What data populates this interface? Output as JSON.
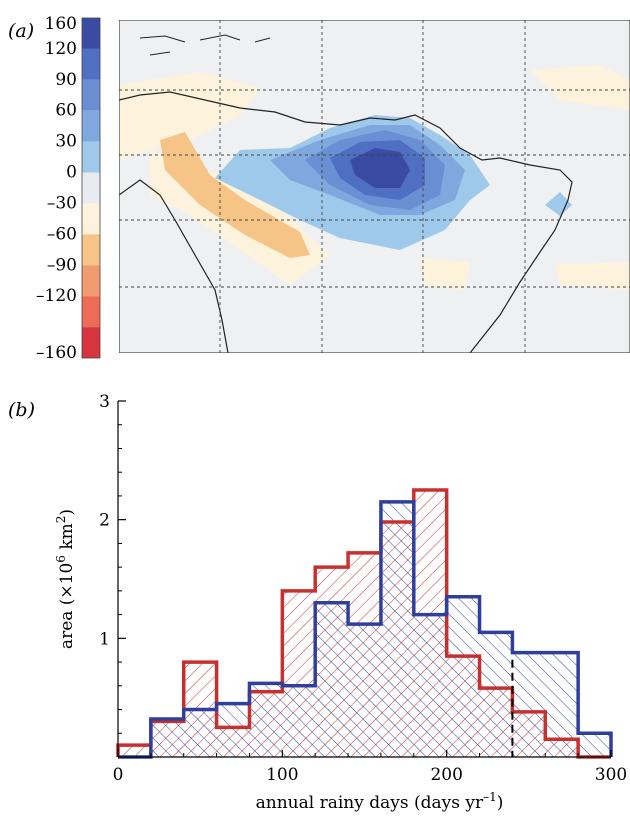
{
  "panel_a": {
    "label": "(a)",
    "colorbar": {
      "ticks": [
        "160",
        "120",
        "90",
        "60",
        "30",
        "0",
        "–30",
        "–60",
        "–90",
        "–120",
        "–160"
      ],
      "colors": [
        "#3b4aa3",
        "#4f6fc3",
        "#6a8fd2",
        "#7fa9de",
        "#9ec9ea",
        "#e8ecf0",
        "#fdf3dd",
        "#f7c488",
        "#f29a70",
        "#ee6b57",
        "#d8343f"
      ]
    }
  },
  "panel_b": {
    "label": "(b)",
    "series_colors": {
      "series_1": "#c8302f",
      "series_2": "#2f3f9c"
    }
  },
  "chart_data": {
    "type": "histogram",
    "xlabel": "annual rainy days (days yr",
    "xlabel_sup": "–1",
    "xlabel_close": ")",
    "ylabel": "area (×10",
    "ylabel_sup": "6",
    "ylabel_mid": " km",
    "ylabel_sup2": "2",
    "ylabel_close": ")",
    "xlim": [
      0,
      300
    ],
    "ylim": [
      0,
      3
    ],
    "xticks": [
      "0",
      "100",
      "200",
      "300"
    ],
    "yticks": [
      "1",
      "2",
      "3"
    ],
    "dashed_line_x": 240,
    "bin_edges": [
      0,
      20,
      40,
      60,
      80,
      100,
      120,
      140,
      160,
      180,
      200,
      220,
      240,
      260,
      280,
      300
    ],
    "series": [
      {
        "values": [
          0.1,
          0.3,
          0.8,
          0.25,
          0.55,
          1.4,
          1.6,
          1.72,
          1.98,
          2.25,
          0.85,
          0.58,
          0.38,
          0.15,
          0.0
        ]
      },
      {
        "values": [
          0.0,
          0.32,
          0.4,
          0.45,
          0.62,
          0.6,
          1.3,
          1.12,
          2.15,
          1.2,
          1.35,
          1.05,
          0.88,
          0.88,
          0.2
        ]
      }
    ]
  }
}
